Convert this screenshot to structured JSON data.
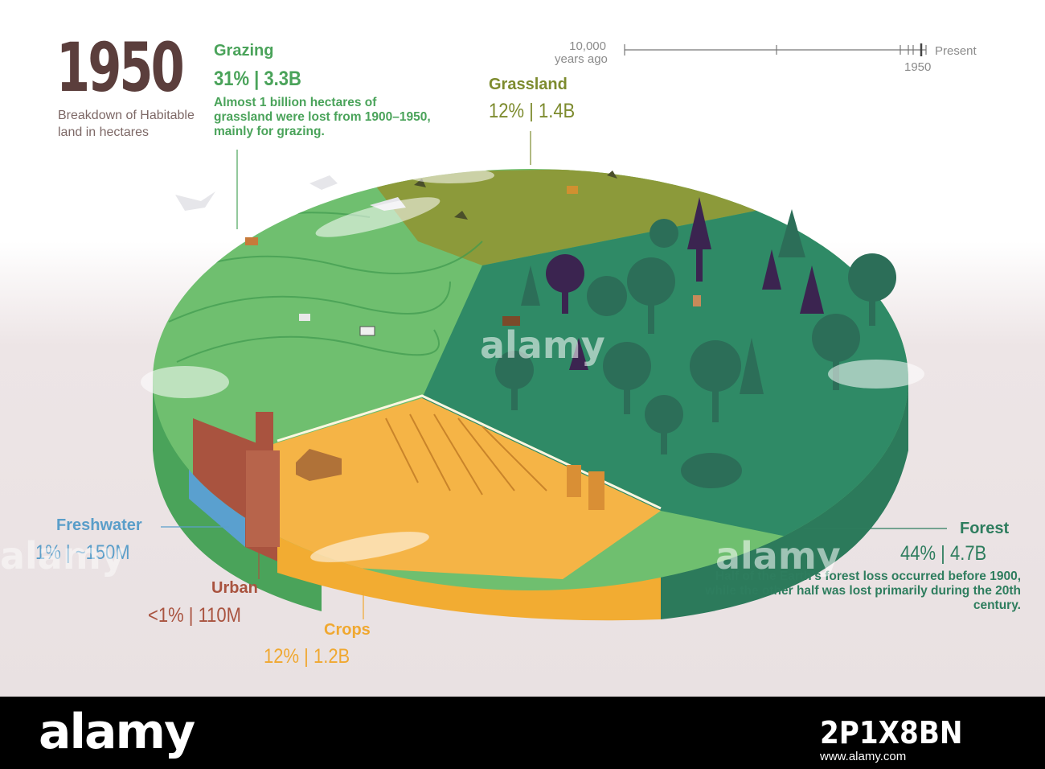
{
  "header": {
    "year": "1950",
    "subtitle": "Breakdown of Habitable land in hectares"
  },
  "timeline": {
    "start_label_line1": "10,000",
    "start_label_line2": "years ago",
    "end_label": "Present",
    "marker_label": "1950"
  },
  "categories": {
    "grazing": {
      "label": "Grazing",
      "value": "31%  |  3.3B",
      "note": "Almost 1 billion hectares of grassland were lost from 1900–1950, mainly for grazing.",
      "color": "#6ab86a"
    },
    "grassland": {
      "label": "Grassland",
      "value": "12%  |  1.4B",
      "color": "#7d8b2e"
    },
    "forest": {
      "label": "Forest",
      "value": "44%  |  4.7B",
      "note": "Half of the Earth’s forest loss occurred before 1900, while the other half was lost primarily during the 20th century.",
      "color": "#2e7d5e"
    },
    "freshwater": {
      "label": "Freshwater",
      "value": "1%  |  ~150M",
      "color": "#5a9ec9"
    },
    "urban": {
      "label": "Urban",
      "value": "<1%  |  110M",
      "color": "#a9533f"
    },
    "crops": {
      "label": "Crops",
      "value": "12%  |  1.2B",
      "color": "#f0a830"
    }
  },
  "colors": {
    "title": "#5b3e3c",
    "grazing_top": "#6fbf6f",
    "grassland_top": "#8c9a3a",
    "forest_top": "#2f8a66",
    "crops_top": "#f5b446",
    "tree_dark": "#3b2450",
    "tree_green": "#2c6e58"
  },
  "watermark": {
    "brand": "alamy"
  },
  "footer": {
    "brand": "alamy",
    "image_id": "2P1X8BN",
    "site": "www.alamy.com"
  }
}
